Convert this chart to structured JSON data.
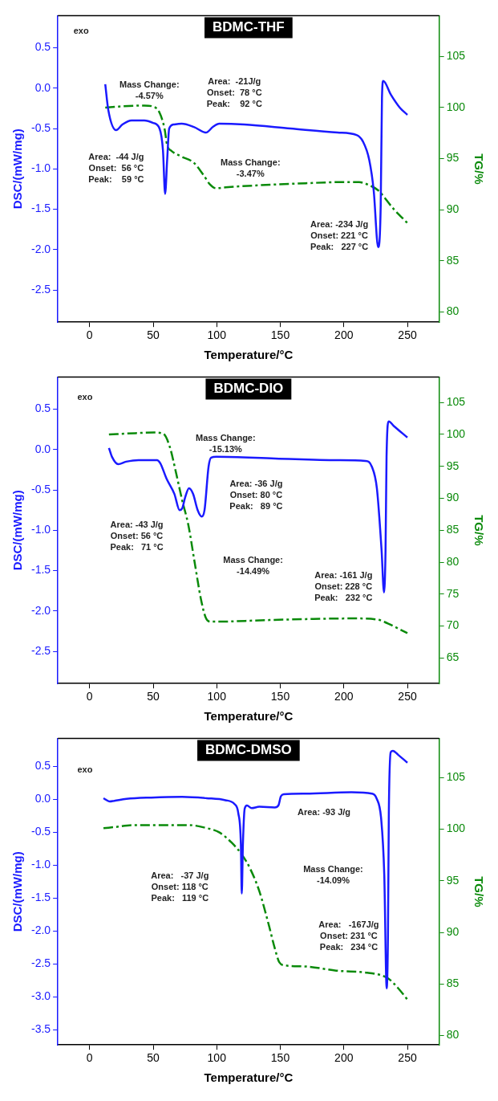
{
  "chart_data": [
    {
      "type": "line",
      "title": "BDMC-THF",
      "xlabel": "Temperature/°C",
      "ylabel": "DSC/(mW/mg)",
      "y2label": "TG/%",
      "marker": "none",
      "grid": false,
      "legend": false,
      "xlim": [
        -25,
        275
      ],
      "xticks": [
        0,
        50,
        100,
        150,
        200,
        250
      ],
      "ylim": [
        -2.9,
        0.9
      ],
      "yticks": [
        -2.5,
        {
          "value": -2,
          "label": "-2.0"
        },
        -1.5,
        {
          "value": -1,
          "label": "-1.0"
        },
        -0.5,
        {
          "value": 0,
          "label": "0.0"
        },
        0.5
      ],
      "y2lim": [
        79,
        109
      ],
      "y2ticks": [
        80,
        85,
        90,
        95,
        100,
        105
      ],
      "series": [
        {
          "color": "#1a1aff",
          "line_style": "solid",
          "x": [
            12.3,
            14.7,
            20.9,
            25.8,
            33,
            43,
            50,
            55,
            57.7,
            59.4,
            61,
            62.6,
            66.3,
            72.4,
            82,
            91.6,
            97,
            102,
            121.6,
            158,
            195,
            210,
            215,
            220,
            223.5,
            227,
            229,
            230,
            231,
            237,
            244,
            250
          ],
          "values": [
            0.05,
            -0.27,
            -0.52,
            -0.45,
            -0.4,
            -0.4,
            -0.43,
            -0.5,
            -0.77,
            -1.31,
            -0.89,
            -0.5,
            -0.45,
            -0.44,
            -0.48,
            -0.55,
            -0.48,
            -0.44,
            -0.45,
            -0.5,
            -0.55,
            -0.58,
            -0.66,
            -0.89,
            -1.27,
            -1.97,
            -1.46,
            -0.12,
            0.09,
            -0.08,
            -0.24,
            -0.33
          ]
        },
        {
          "color": "#0a8a0a",
          "line_style": "dashed",
          "axis": "y2",
          "x": [
            12.3,
            23,
            43,
            50,
            55,
            59,
            61,
            64,
            72.4,
            82,
            89.6,
            94.5,
            99.5,
            107,
            134,
            171,
            195,
            212,
            220,
            227,
            239,
            250
          ],
          "values": [
            100,
            100.1,
            100.2,
            100.1,
            99.5,
            97.9,
            96.3,
            95.8,
            95.2,
            94.6,
            93.4,
            92.5,
            92.1,
            92.2,
            92.4,
            92.6,
            92.7,
            92.7,
            92.4,
            91.9,
            90.1,
            88.7
          ]
        }
      ],
      "annotations": [
        "exo",
        "Mass Change:\n-4.57%",
        "Area:  -21J/g\nOnset:  78 °C\nPeak:    92 °C",
        "Area:  -44 J/g\nOnset:  56 °C\nPeak:    59 °C",
        "Mass Change:\n-3.47%",
        "Area: -234 J/g\nOnset: 221 °C\nPeak:   227 °C"
      ]
    },
    {
      "type": "line",
      "title": "BDMC-DIO",
      "xlabel": "Temperature/°C",
      "ylabel": "DSC/(mW/mg)",
      "y2label": "TG/%",
      "marker": "none",
      "grid": false,
      "legend": false,
      "xlim": [
        -25,
        275
      ],
      "xticks": [
        0,
        50,
        100,
        150,
        200,
        250
      ],
      "ylim": [
        -2.9,
        0.9
      ],
      "yticks": [
        -2.5,
        {
          "value": -2,
          "label": "-2.0"
        },
        -1.5,
        {
          "value": -1,
          "label": "-1.0"
        },
        -0.5,
        {
          "value": 0,
          "label": "0.0"
        },
        0.5
      ],
      "y2lim": [
        61,
        109
      ],
      "y2ticks": [
        65,
        70,
        75,
        80,
        85,
        90,
        95,
        100,
        105
      ],
      "series": [
        {
          "color": "#1a1aff",
          "line_style": "solid",
          "x": [
            15.2,
            17.6,
            22.5,
            28.7,
            38.5,
            53,
            55.6,
            60.5,
            66.7,
            70.8,
            72.8,
            75.2,
            78.2,
            81.4,
            85,
            88.2,
            90.4,
            93.6,
            95.6,
            99.8,
            146,
            195,
            217,
            222,
            226,
            229.7,
            231.6,
            232.8,
            233.6,
            235.3,
            239.5,
            250
          ],
          "values": [
            0.02,
            -0.09,
            -0.18,
            -0.15,
            -0.13,
            -0.13,
            -0.17,
            -0.36,
            -0.55,
            -0.75,
            -0.73,
            -0.59,
            -0.48,
            -0.55,
            -0.75,
            -0.83,
            -0.75,
            -0.21,
            -0.1,
            -0.09,
            -0.11,
            -0.13,
            -0.14,
            -0.21,
            -0.48,
            -1.25,
            -1.77,
            -1.25,
            -0.09,
            0.35,
            0.29,
            0.15
          ]
        },
        {
          "color": "#0a8a0a",
          "line_style": "dashed",
          "axis": "y2",
          "x": [
            15.2,
            36,
            50.7,
            58,
            63,
            68,
            72.8,
            77.7,
            82.6,
            87.5,
            91.2,
            94.9,
            102,
            134,
            171,
            207.6,
            227,
            234.6,
            250
          ],
          "values": [
            100,
            100.2,
            100.3,
            100.1,
            98.1,
            94,
            89.7,
            85.8,
            80,
            74.3,
            71.4,
            70.7,
            70.7,
            70.9,
            71.1,
            71.2,
            71.0,
            70.4,
            68.9
          ]
        }
      ],
      "annotations": [
        "exo",
        "Mass Change:\n-15.13%",
        "Area: -36 J/g\nOnset: 80 °C\nPeak:   89 °C",
        "Area: -43 J/g\nOnset: 56 °C\nPeak:   71 °C",
        "Mass Change:\n-14.49%",
        "Area: -161 J/g\nOnset: 228 °C\nPeak:   232 °C"
      ]
    },
    {
      "type": "line",
      "title": "BDMC-DMSO",
      "xlabel": "Temperature/°C",
      "ylabel": "DSC/(mW/mg)",
      "y2label": "TG/%",
      "marker": "none",
      "grid": false,
      "legend": false,
      "xlim": [
        -25,
        275
      ],
      "xticks": [
        0,
        50,
        100,
        150,
        200,
        250
      ],
      "ylim": [
        -3.73,
        0.93
      ],
      "yticks": [
        -3.5,
        {
          "value": -3,
          "label": "-3.0"
        },
        -2.5,
        {
          "value": -2,
          "label": "-2.0"
        },
        -1.5,
        {
          "value": -1,
          "label": "-1.0"
        },
        -0.5,
        {
          "value": 0,
          "label": "0.0"
        },
        0.5
      ],
      "y2lim": [
        79.1,
        108.8
      ],
      "y2ticks": [
        80,
        85,
        90,
        95,
        100,
        105
      ],
      "series": [
        {
          "color": "#1a1aff",
          "line_style": "solid",
          "x": [
            10.9,
            12.6,
            15.8,
            19.4,
            29,
            48.5,
            72.8,
            92,
            106.8,
            114,
            117,
            119,
            119.7,
            120.6,
            122,
            123.8,
            127.4,
            133.5,
            145.6,
            148.5,
            150.5,
            152.9,
            170,
            206,
            222,
            225.7,
            229.4,
            231.8,
            233.7,
            234.7,
            235.4,
            236.9,
            238.6,
            242.7,
            250
          ],
          "values": [
            0.02,
            0,
            -0.03,
            -0.02,
            0.01,
            0.03,
            0.04,
            0.02,
            -0.01,
            -0.07,
            -0.21,
            -0.68,
            -1.43,
            -0.68,
            -0.14,
            -0.09,
            -0.13,
            -0.11,
            -0.12,
            -0.09,
            0.05,
            0.08,
            0.09,
            0.11,
            0.09,
            0.02,
            -0.3,
            -1.14,
            -2.87,
            -2.08,
            -0.21,
            0.72,
            0.74,
            0.68,
            0.56
          ]
        },
        {
          "color": "#0a8a0a",
          "line_style": "dashed",
          "axis": "y2",
          "x": [
            10.9,
            19.4,
            36.4,
            60.7,
            77.7,
            92.2,
            101.9,
            111.7,
            120,
            126.2,
            133.5,
            140.8,
            145.6,
            149.3,
            154,
            170,
            194,
            218.4,
            230.6,
            235.4,
            242.7,
            250
          ],
          "values": [
            100.1,
            100.2,
            100.4,
            100.4,
            100.4,
            100.1,
            99.7,
            98.7,
            97.5,
            96.2,
            94,
            90.8,
            88.5,
            87.1,
            86.8,
            86.7,
            86.3,
            86.1,
            85.8,
            85.5,
            84.6,
            83.5
          ]
        }
      ],
      "annotations": [
        "exo",
        "Area: -93 J/g",
        "Area:   -37 J/g\nOnset: 118 °C\nPeak:   119 °C",
        "Mass Change:\n-14.09%",
        "Area:   -167J/g\nOnset: 231 °C\nPeak:   234 °C"
      ]
    }
  ]
}
